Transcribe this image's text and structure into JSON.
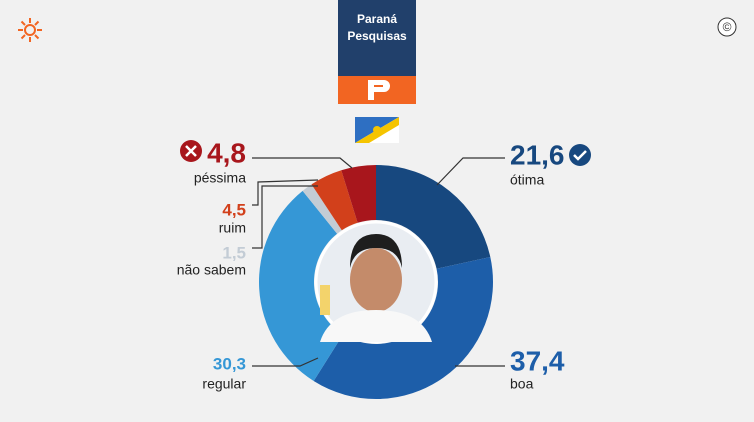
{
  "chart_data": {
    "type": "donut",
    "header": [
      "Paraná",
      "Pesquisas"
    ],
    "copyright": "©",
    "categories": [
      "ótima",
      "boa",
      "regular",
      "não sabem",
      "ruim",
      "péssima"
    ],
    "values": [
      21.6,
      37.4,
      30.3,
      1.5,
      4.5,
      4.8
    ],
    "value_labels": [
      "21,6",
      "37,4",
      "30,3",
      "1,5",
      "4,5",
      "4,8"
    ],
    "colors": [
      "#17487f",
      "#1d5ea9",
      "#3597d6",
      "#c3ccd5",
      "#d2401b",
      "#a8161c"
    ]
  }
}
